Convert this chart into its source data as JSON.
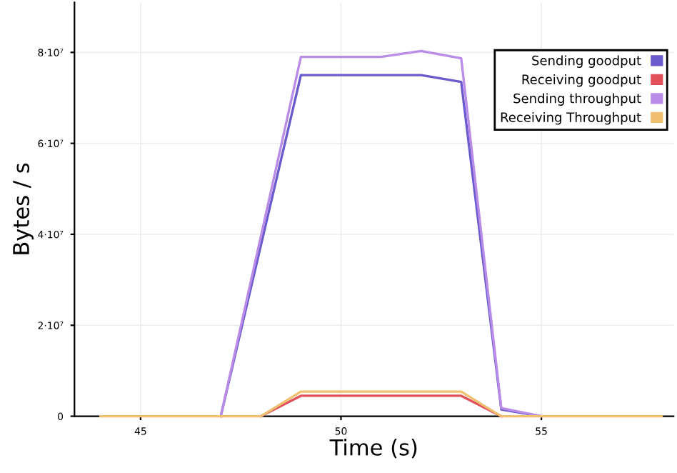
{
  "chart_data": {
    "type": "line",
    "xlabel": "Time (s)",
    "ylabel": "Bytes / s",
    "x": [
      44,
      45,
      46,
      47,
      48,
      49,
      50,
      51,
      52,
      53,
      54,
      55,
      56,
      57,
      58
    ],
    "series": [
      {
        "name": "Sending goodput",
        "color": "#6a5acd",
        "values": [
          null,
          null,
          null,
          0,
          null,
          75000000,
          75000000,
          75000000,
          75000000,
          73500000,
          1500000,
          0,
          null,
          null,
          null
        ]
      },
      {
        "name": "Receiving goodput",
        "color": "#e0505a",
        "values": [
          null,
          null,
          null,
          null,
          0,
          4500000,
          4500000,
          4500000,
          4500000,
          4500000,
          0,
          null,
          null,
          null,
          null
        ]
      },
      {
        "name": "Sending throughput",
        "color": "#b98ce8",
        "values": [
          null,
          null,
          null,
          0,
          null,
          79000000,
          79000000,
          79000000,
          80300000,
          78700000,
          1800000,
          0,
          null,
          null,
          null
        ]
      },
      {
        "name": "Receiving Throughput",
        "color": "#f0c070",
        "values": [
          0,
          0,
          0,
          0,
          0,
          5400000,
          5400000,
          5400000,
          5400000,
          5400000,
          0,
          0,
          0,
          0,
          0
        ]
      }
    ],
    "xlim": [
      43.35,
      58.3
    ],
    "ylim": [
      0,
      91000000
    ],
    "xticks": [
      45,
      50,
      55
    ],
    "yticks": [
      0,
      {
        "value": 20000000,
        "label": "2·10⁷"
      },
      {
        "value": 40000000,
        "label": "4·10⁷"
      },
      {
        "value": 60000000,
        "label": "6·10⁷"
      },
      {
        "value": 80000000,
        "label": "8·10⁷"
      }
    ],
    "grid": true,
    "legend": "top right"
  }
}
